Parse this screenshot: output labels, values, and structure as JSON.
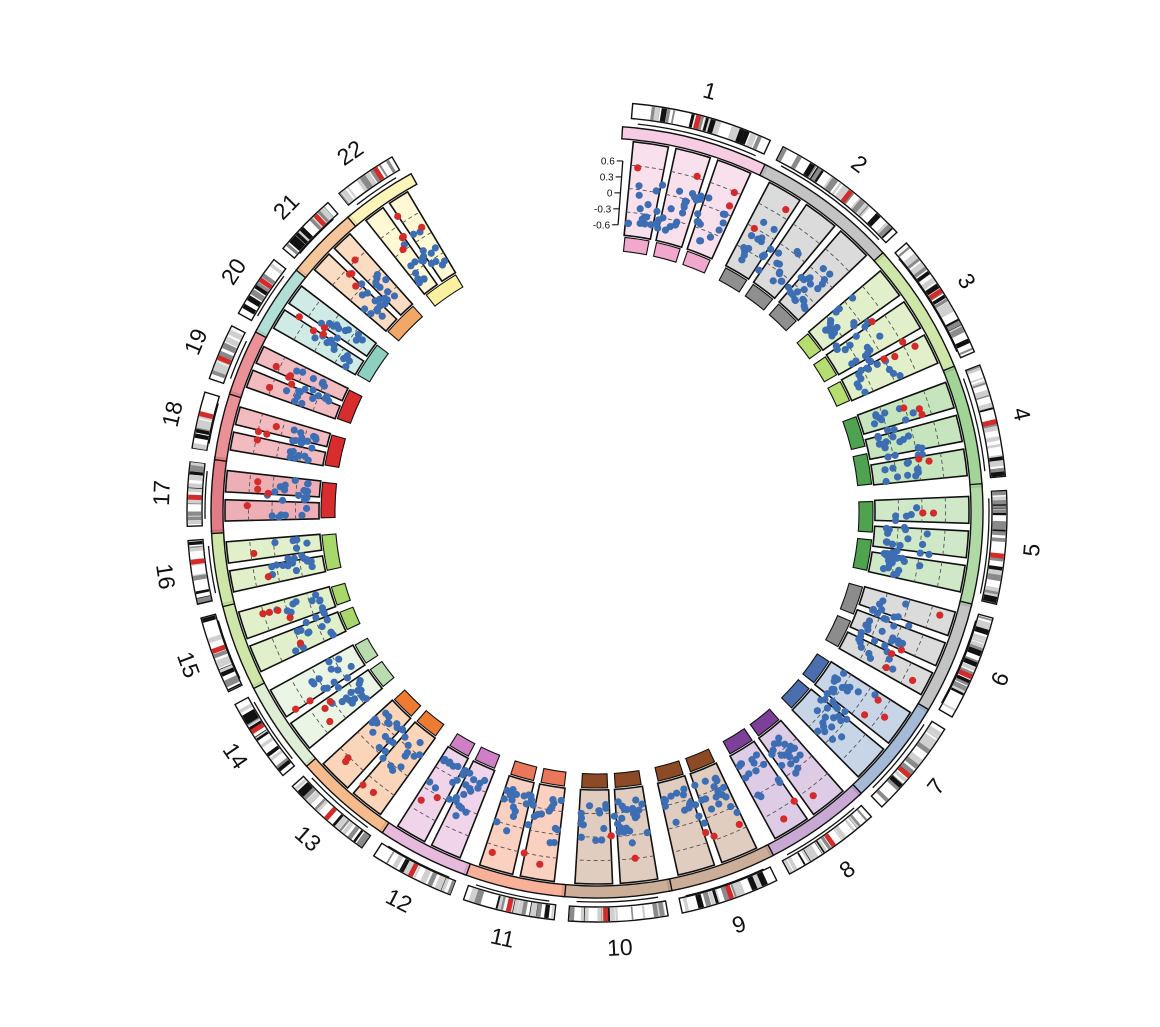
{
  "figure": {
    "chromosomes": [
      {
        "label": "1",
        "color": "#f4c7df"
      },
      {
        "label": "2",
        "color": "#bdbdbd"
      },
      {
        "label": "3",
        "color": "#c9e39f"
      },
      {
        "label": "4",
        "color": "#97cf8b"
      },
      {
        "label": "5",
        "color": "#a7d59b"
      },
      {
        "label": "6",
        "color": "#bdbdbd"
      },
      {
        "label": "7",
        "color": "#9ab3d3"
      },
      {
        "label": "8",
        "color": "#c2a0cf"
      },
      {
        "label": "9",
        "color": "#c7a48d"
      },
      {
        "label": "10",
        "color": "#c7a48d"
      },
      {
        "label": "11",
        "color": "#f5a98d"
      },
      {
        "label": "12",
        "color": "#e4b3d8"
      },
      {
        "label": "13",
        "color": "#f5b381"
      },
      {
        "label": "14",
        "color": "#d9eccf"
      },
      {
        "label": "15",
        "color": "#c9e39f"
      },
      {
        "label": "16",
        "color": "#c9e39f"
      },
      {
        "label": "17",
        "color": "#de6d78"
      },
      {
        "label": "18",
        "color": "#e8848c"
      },
      {
        "label": "19",
        "color": "#e8848c"
      },
      {
        "label": "20",
        "color": "#a9dbd0"
      },
      {
        "label": "21",
        "color": "#f5c08f"
      },
      {
        "label": "22",
        "color": "#fdf3b3"
      }
    ],
    "axis": {
      "ticks": [
        "0.6",
        "0.3",
        "0",
        "-0.3",
        "-0.6"
      ]
    },
    "colors": {
      "point_blue": "#3d6eb3",
      "point_red": "#d42a2a",
      "band_highlight": "#d42a2a",
      "outline": "#111111"
    }
  }
}
